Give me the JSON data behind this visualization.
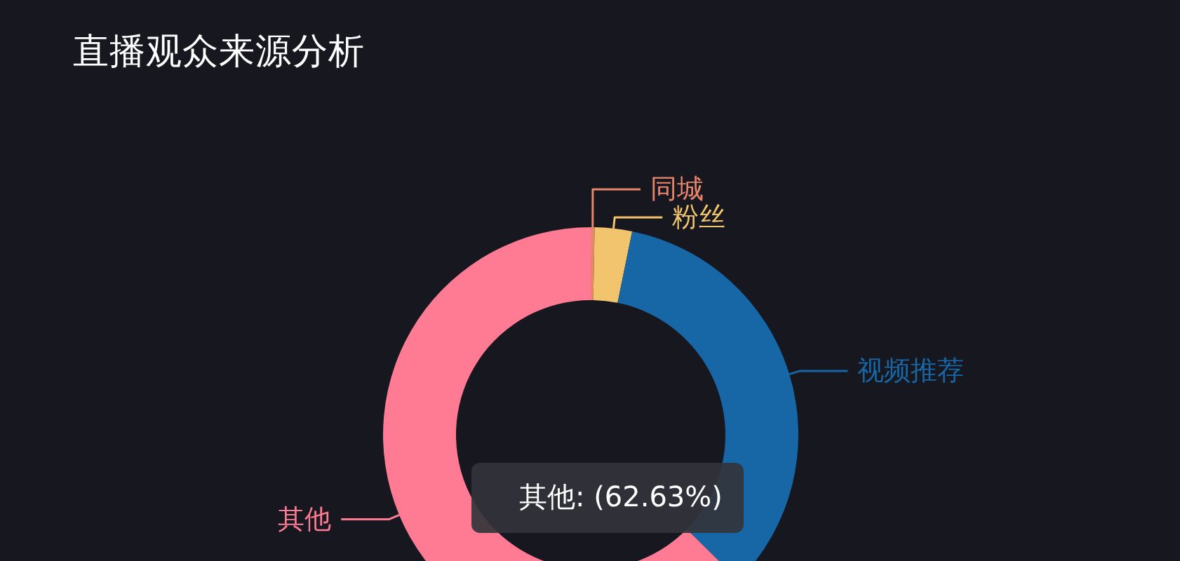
{
  "chart_data": {
    "type": "donut",
    "title": "直播观众来源分析",
    "categories": [
      "同城",
      "粉丝",
      "视频推荐",
      "其他"
    ],
    "values": [
      0.3,
      2.9,
      34.17,
      62.63
    ],
    "colors": [
      "#e8866b",
      "#f2c46e",
      "#1766a6",
      "#ff7b93"
    ],
    "annotations": [
      "其他: (62.63%)"
    ]
  }
}
